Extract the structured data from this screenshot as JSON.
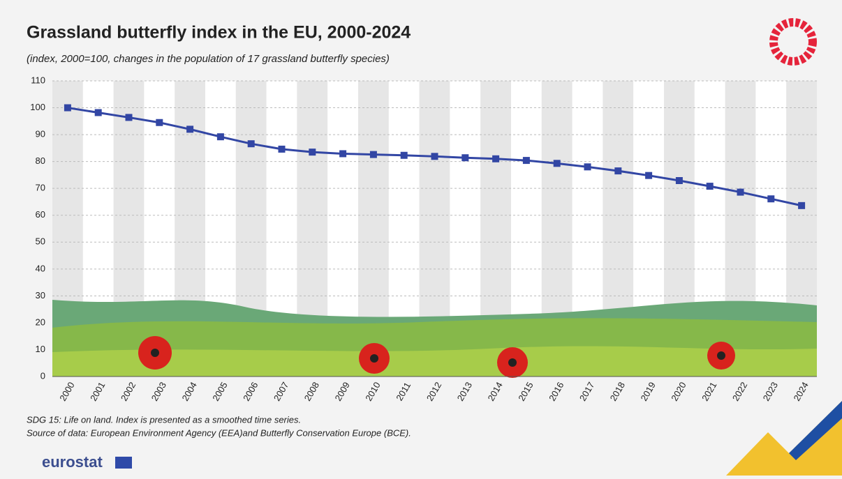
{
  "chart_data": {
    "type": "line",
    "title": "Grassland butterfly index in the EU, 2000-2024",
    "subtitle": "(index, 2000=100, changes in the population of 17 grassland butterfly species)",
    "categories": [
      "2000",
      "2001",
      "2002",
      "2003",
      "2004",
      "2005",
      "2006",
      "2007",
      "2008",
      "2009",
      "2010",
      "2011",
      "2012",
      "2013",
      "2014",
      "2015",
      "2016",
      "2017",
      "2018",
      "2019",
      "2020",
      "2021",
      "2022",
      "2023",
      "2024"
    ],
    "series": [
      {
        "name": "Grassland butterfly index",
        "color": "#3246a4",
        "values": [
          100,
          98.2,
          96.4,
          94.5,
          92,
          89.2,
          86.6,
          84.6,
          83.5,
          82.9,
          82.6,
          82.3,
          81.9,
          81.4,
          81,
          80.4,
          79.3,
          78,
          76.5,
          74.8,
          72.9,
          70.8,
          68.6,
          66.1,
          63.6
        ]
      }
    ],
    "ylim": [
      0,
      110
    ],
    "yticks": [
      0,
      10,
      20,
      30,
      40,
      50,
      60,
      70,
      80,
      90,
      100,
      110
    ],
    "grid": true,
    "notes": [
      "SDG 15: Life on land.  Index is presented as a smoothed time series.",
      "Source of data: European Environment Agency (EEA)and Butterfly Conservation Europe (BCE)."
    ],
    "logo": "eurostat"
  }
}
